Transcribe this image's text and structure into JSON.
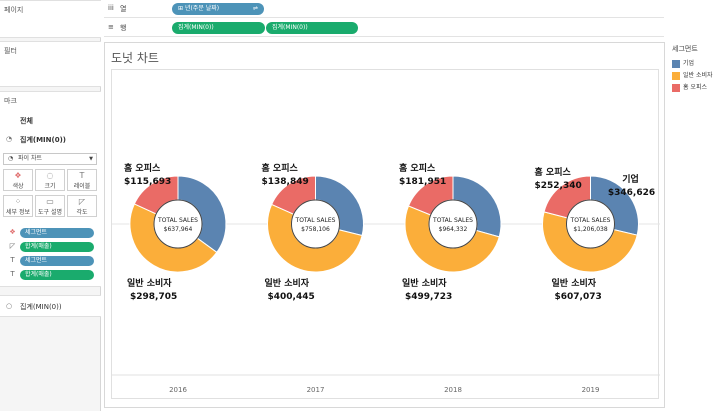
{
  "left_panel": {
    "pages_title": "페이지",
    "filters_title": "필터",
    "marks_title": "마크",
    "marks_all": "전체",
    "marks_agg": "집계(MIN(0))",
    "mark_type": "파이 차트",
    "buttons": [
      "색상",
      "크기",
      "레이블",
      "세부 정보",
      "도구 설명",
      "각도"
    ],
    "pills": [
      {
        "label": "세그먼트",
        "color": "blue"
      },
      {
        "label": "합계(매출)",
        "color": "green"
      },
      {
        "label": "세그먼트",
        "color": "blue"
      },
      {
        "label": "합계(매출)",
        "color": "green"
      }
    ],
    "bottom_card": "집계(MIN(0))"
  },
  "shelves": {
    "columns_label": "열",
    "columns_pill": "년(주문 날짜)",
    "rows_label": "행",
    "rows_pills": [
      "집계(MIN(0))",
      "집계(MIN(0))"
    ]
  },
  "sheet_title": "도넛 차트",
  "legend": {
    "title": "세그먼트",
    "items": [
      {
        "label": "기업",
        "color": "#5b84b1"
      },
      {
        "label": "일반 소비자",
        "color": "#fbae3a"
      },
      {
        "label": "홈 오피스",
        "color": "#ea6b66"
      }
    ]
  },
  "chart_data": {
    "type": "pie",
    "categories": [
      "2016",
      "2017",
      "2018",
      "2019"
    ],
    "segments": [
      "기업",
      "일반 소비자",
      "홈 오피스"
    ],
    "colors": {
      "기업": "#5b84b1",
      "일반 소비자": "#fbae3a",
      "홈 오피스": "#ea6b66"
    },
    "center_label": "TOTAL SALES",
    "years": [
      {
        "year": "2016",
        "total": "$637,964",
        "segments": [
          {
            "name": "기업",
            "value": 223566,
            "label": ""
          },
          {
            "name": "일반 소비자",
            "value": 298705,
            "label": "$298,705"
          },
          {
            "name": "홈 오피스",
            "value": 115693,
            "label": "$115,693"
          }
        ]
      },
      {
        "year": "2017",
        "total": "$758,106",
        "segments": [
          {
            "name": "기업",
            "value": 218812,
            "label": ""
          },
          {
            "name": "일반 소비자",
            "value": 400445,
            "label": "$400,445"
          },
          {
            "name": "홈 오피스",
            "value": 138849,
            "label": "$138,849"
          }
        ]
      },
      {
        "year": "2018",
        "total": "$964,332",
        "segments": [
          {
            "name": "기업",
            "value": 282658,
            "label": ""
          },
          {
            "name": "일반 소비자",
            "value": 499723,
            "label": "$499,723"
          },
          {
            "name": "홈 오피스",
            "value": 181951,
            "label": "$181,951"
          }
        ]
      },
      {
        "year": "2019",
        "total": "$1,206,038",
        "segments": [
          {
            "name": "기업",
            "value": 346626,
            "label": "$346,626"
          },
          {
            "name": "일반 소비자",
            "value": 607073,
            "label": "$607,073"
          },
          {
            "name": "홈 오피스",
            "value": 252340,
            "label": "$252,340"
          }
        ]
      }
    ]
  }
}
